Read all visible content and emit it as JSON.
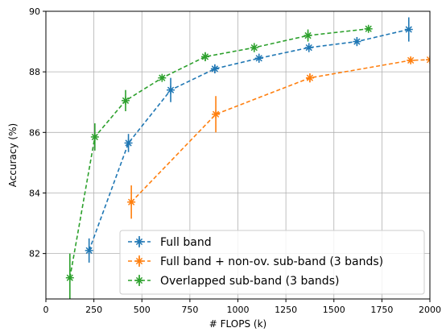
{
  "chart_data": {
    "type": "line",
    "xlabel": "# FLOPS (k)",
    "ylabel": "Accuracy (%)",
    "xlim": [
      0,
      2000
    ],
    "ylim": [
      80.5,
      90
    ],
    "xticks": [
      0,
      250,
      500,
      750,
      1000,
      1250,
      1500,
      1750,
      2000
    ],
    "yticks": [
      82,
      84,
      86,
      88,
      90
    ],
    "grid": true,
    "legend_position": "bottom-right",
    "series": [
      {
        "name": "Full band",
        "color": "#1f77b4",
        "points": [
          {
            "x": 225,
            "y": 82.1,
            "err": 0.4
          },
          {
            "x": 430,
            "y": 85.65,
            "err": 0.3
          },
          {
            "x": 650,
            "y": 87.4,
            "err": 0.4
          },
          {
            "x": 880,
            "y": 88.1,
            "err": 0.15
          },
          {
            "x": 1110,
            "y": 88.45,
            "err": 0.15
          },
          {
            "x": 1370,
            "y": 88.8,
            "err": 0.15
          },
          {
            "x": 1620,
            "y": 89.0,
            "err": 0.15
          },
          {
            "x": 1890,
            "y": 89.4,
            "err": 0.4
          }
        ]
      },
      {
        "name": "Full band + non-ov. sub-band (3 bands)",
        "color": "#ff7f0e",
        "points": [
          {
            "x": 445,
            "y": 83.7,
            "err": 0.55
          },
          {
            "x": 885,
            "y": 86.6,
            "err": 0.6
          },
          {
            "x": 1375,
            "y": 87.8,
            "err": 0.15
          },
          {
            "x": 1900,
            "y": 88.38,
            "err": 0.1
          },
          {
            "x": 2000,
            "y": 88.4,
            "err": 0
          }
        ]
      },
      {
        "name": "Overlapped sub-band (3 bands)",
        "color": "#2ca02c",
        "points": [
          {
            "x": 125,
            "y": 81.2,
            "err": 0.8
          },
          {
            "x": 255,
            "y": 85.85,
            "err": 0.45
          },
          {
            "x": 415,
            "y": 87.05,
            "err": 0.35
          },
          {
            "x": 605,
            "y": 87.8,
            "err": 0.07
          },
          {
            "x": 830,
            "y": 88.5,
            "err": 0.15
          },
          {
            "x": 1085,
            "y": 88.8,
            "err": 0.15
          },
          {
            "x": 1365,
            "y": 89.2,
            "err": 0.2
          },
          {
            "x": 1680,
            "y": 89.42,
            "err": 0.07
          }
        ]
      }
    ]
  }
}
